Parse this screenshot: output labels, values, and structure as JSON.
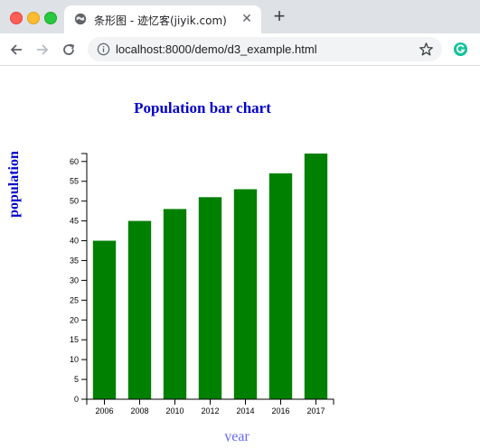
{
  "browser": {
    "tab_title": "条形图 - 迹忆客(jiyik.com)",
    "url_host": "localhost",
    "url_rest": ":8000/demo/d3_example.html",
    "new_tab_label": "+",
    "close_label": "✕"
  },
  "colors": {
    "bar": "#008000",
    "title": "#0000cc",
    "xlabel": "#6666ff",
    "ylabel": "#0000cc",
    "axis": "#000000"
  },
  "chart_data": {
    "type": "bar",
    "title": "Population bar chart",
    "xlabel": "year",
    "ylabel": "population",
    "categories": [
      "2006",
      "2008",
      "2010",
      "2012",
      "2014",
      "2016",
      "2017"
    ],
    "values": [
      40,
      45,
      48,
      51,
      53,
      57,
      62
    ],
    "ylim": [
      0,
      62
    ],
    "yticks": [
      0,
      5,
      10,
      15,
      20,
      25,
      30,
      35,
      40,
      45,
      50,
      55,
      60
    ],
    "grid": false,
    "legend": "none"
  }
}
